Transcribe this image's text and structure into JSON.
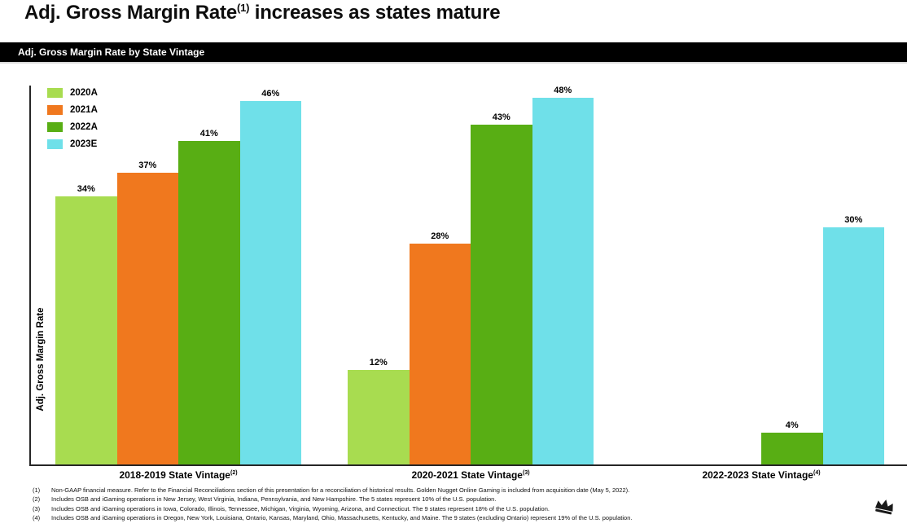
{
  "slide": {
    "title": {
      "pre": "Adj. Gross Margin Rate",
      "sup": "(1)",
      "post": " increases as states mature"
    },
    "banner": "Adj. Gross Margin Rate by State Vintage"
  },
  "chart_data": {
    "type": "bar",
    "title": "Adj. Gross Margin Rate by State Vintage",
    "ylabel": "Adj. Gross Margin Rate",
    "unit": "%",
    "grid": false,
    "legend_position": "top-left",
    "ylim": [
      0,
      48
    ],
    "categories": [
      "2018-2019 State Vintage",
      "2020-2021 State Vintage",
      "2022-2023 State Vintage"
    ],
    "category_sups": [
      "(2)",
      "(3)",
      "(4)"
    ],
    "series": [
      {
        "name": "2020A",
        "color": "#a8dc50",
        "values": [
          34,
          12,
          null
        ]
      },
      {
        "name": "2021A",
        "color": "#f0781e",
        "values": [
          37,
          28,
          null
        ]
      },
      {
        "name": "2022A",
        "color": "#58ae14",
        "values": [
          41,
          43,
          4
        ]
      },
      {
        "name": "2023E",
        "color": "#6fe0e9",
        "values": [
          46,
          48,
          30
        ]
      }
    ]
  },
  "footnotes": [
    {
      "num": "(1)",
      "text": "Non-GAAP financial measure. Refer to the Financial Reconciliations section of this presentation for a reconciliation of historical results. Golden Nugget Online Gaming is included from acquisition date (May 5, 2022)."
    },
    {
      "num": "(2)",
      "text": "Includes OSB and iGaming operations in New Jersey, West Virginia, Indiana, Pennsylvania, and New Hampshire. The 5 states represent 10% of the U.S. population."
    },
    {
      "num": "(3)",
      "text": "Includes OSB and iGaming operations in Iowa, Colorado, Illinois, Tennessee, Michigan, Virginia, Wyoming, Arizona, and Connecticut. The 9 states represent 18% of the U.S. population."
    },
    {
      "num": "(4)",
      "text": "Includes OSB and iGaming operations in Oregon, New York, Louisiana, Ontario, Kansas, Maryland, Ohio, Massachusetts, Kentucky, and Maine. The 9 states (excluding Ontario) represent 19% of the U.S. population."
    }
  ],
  "icons": {
    "logo": "crown-icon"
  },
  "colors": {
    "banner_bg": "#000000",
    "axis": "#262626",
    "banner_text": "#ffffff"
  }
}
